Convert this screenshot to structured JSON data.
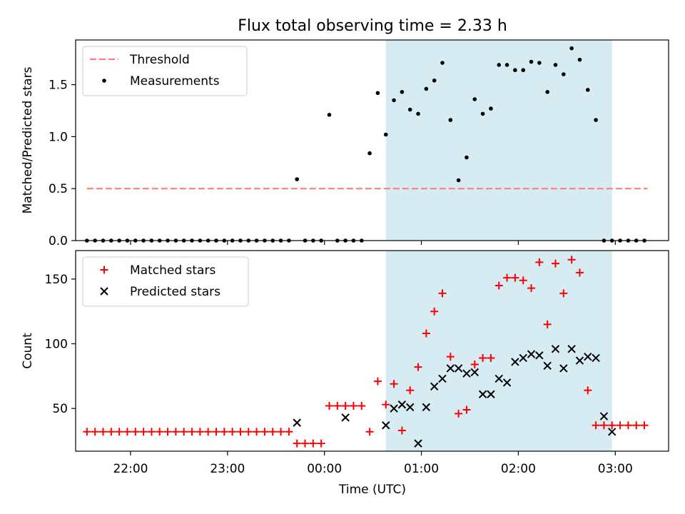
{
  "title": "Flux total observing time = 2.33 h",
  "xlabel": "Time (UTC)",
  "x_ticks": [
    "22:00",
    "23:00",
    "00:00",
    "01:00",
    "02:00",
    "03:00"
  ],
  "chart_data": [
    {
      "type": "scatter",
      "panel": "top",
      "ylabel": "Matched/Predicted stars",
      "y_ticks": [
        "0.0",
        "0.5",
        "1.0",
        "1.5"
      ],
      "ylim": [
        0,
        1.93
      ],
      "xlim": [
        "21:26",
        "03:33"
      ],
      "x_unit": "HH:MM UTC (date rolls over at 00:00)",
      "grid": false,
      "legend_position": "top-left",
      "shaded_interval": [
        "00:38",
        "02:58"
      ],
      "threshold": {
        "name": "Threshold",
        "value": 0.5,
        "x_range": [
          "21:33",
          "03:20"
        ],
        "color": "#ff7f7f"
      },
      "series": [
        {
          "name": "Measurements",
          "color": "#000000",
          "x": [
            "21:33",
            "21:38",
            "21:43",
            "21:48",
            "21:53",
            "21:58",
            "22:03",
            "22:08",
            "22:13",
            "22:18",
            "22:23",
            "22:28",
            "22:33",
            "22:38",
            "22:43",
            "22:48",
            "22:53",
            "22:58",
            "23:03",
            "23:08",
            "23:13",
            "23:18",
            "23:23",
            "23:28",
            "23:33",
            "23:38",
            "23:43",
            "23:48",
            "23:53",
            "23:58",
            "00:03",
            "00:08",
            "00:13",
            "00:18",
            "00:23",
            "00:28",
            "00:33",
            "00:38",
            "00:43",
            "00:48",
            "00:53",
            "00:58",
            "01:03",
            "01:08",
            "01:13",
            "01:18",
            "01:23",
            "01:28",
            "01:33",
            "01:38",
            "01:43",
            "01:48",
            "01:53",
            "01:58",
            "02:03",
            "02:08",
            "02:13",
            "02:18",
            "02:23",
            "02:28",
            "02:33",
            "02:38",
            "02:43",
            "02:48",
            "02:53",
            "02:58",
            "03:03",
            "03:08",
            "03:13",
            "03:18"
          ],
          "y": [
            0,
            0,
            0,
            0,
            0,
            0,
            0,
            0,
            0,
            0,
            0,
            0,
            0,
            0,
            0,
            0,
            0,
            0,
            0,
            0,
            0,
            0,
            0,
            0,
            0,
            0,
            0.59,
            0,
            0,
            0,
            1.21,
            0,
            0,
            0,
            0,
            0.84,
            1.42,
            1.02,
            1.35,
            1.43,
            1.26,
            1.22,
            1.46,
            1.54,
            1.71,
            1.16,
            0.58,
            0.8,
            1.36,
            1.22,
            1.27,
            1.69,
            1.69,
            1.64,
            1.64,
            1.72,
            1.71,
            1.43,
            1.69,
            1.6,
            1.85,
            1.74,
            1.45,
            1.16,
            0,
            0,
            0,
            0,
            0,
            0
          ]
        }
      ]
    },
    {
      "type": "scatter",
      "panel": "bottom",
      "ylabel": "Count",
      "y_ticks": [
        "50",
        "100",
        "150"
      ],
      "ylim": [
        17,
        172
      ],
      "xlim": [
        "21:26",
        "03:33"
      ],
      "x_unit": "HH:MM UTC (date rolls over at 00:00)",
      "grid": false,
      "legend_position": "top-left",
      "shaded_interval": [
        "00:38",
        "02:58"
      ],
      "series": [
        {
          "name": "Matched stars",
          "marker": "+",
          "color": "#ff0000",
          "x": [
            "21:33",
            "21:38",
            "21:43",
            "21:48",
            "21:53",
            "21:58",
            "22:03",
            "22:08",
            "22:13",
            "22:18",
            "22:23",
            "22:28",
            "22:33",
            "22:38",
            "22:43",
            "22:48",
            "22:53",
            "22:58",
            "23:03",
            "23:08",
            "23:13",
            "23:18",
            "23:23",
            "23:28",
            "23:33",
            "23:38",
            "23:43",
            "23:48",
            "23:53",
            "23:58",
            "00:03",
            "00:08",
            "00:13",
            "00:18",
            "00:23",
            "00:28",
            "00:33",
            "00:38",
            "00:43",
            "00:48",
            "00:53",
            "00:58",
            "01:03",
            "01:08",
            "01:13",
            "01:18",
            "01:23",
            "01:28",
            "01:33",
            "01:38",
            "01:43",
            "01:48",
            "01:53",
            "01:58",
            "02:03",
            "02:08",
            "02:13",
            "02:18",
            "02:23",
            "02:28",
            "02:33",
            "02:38",
            "02:43",
            "02:48",
            "02:53",
            "02:58",
            "03:03",
            "03:08",
            "03:13",
            "03:18"
          ],
          "y": [
            32,
            32,
            32,
            32,
            32,
            32,
            32,
            32,
            32,
            32,
            32,
            32,
            32,
            32,
            32,
            32,
            32,
            32,
            32,
            32,
            32,
            32,
            32,
            32,
            32,
            32,
            23,
            23,
            23,
            23,
            52,
            52,
            52,
            52,
            52,
            32,
            71,
            53,
            69,
            33,
            64,
            82,
            108,
            125,
            139,
            90,
            46,
            49,
            84,
            89,
            89,
            145,
            151,
            151,
            149,
            143,
            163,
            115,
            162,
            139,
            165,
            155,
            64,
            37,
            37,
            37,
            37,
            37,
            37,
            37
          ]
        },
        {
          "name": "Predicted stars",
          "marker": "x",
          "color": "#000000",
          "x": [
            "23:43",
            "00:13",
            "00:38",
            "00:43",
            "00:48",
            "00:53",
            "00:58",
            "01:03",
            "01:08",
            "01:13",
            "01:18",
            "01:23",
            "01:28",
            "01:33",
            "01:38",
            "01:43",
            "01:48",
            "01:53",
            "01:58",
            "02:03",
            "02:08",
            "02:13",
            "02:18",
            "02:23",
            "02:28",
            "02:33",
            "02:38",
            "02:43",
            "02:48",
            "02:53",
            "02:58"
          ],
          "y": [
            39,
            43,
            37,
            50,
            53,
            51,
            23,
            51,
            67,
            73,
            81,
            81,
            77,
            78,
            61,
            61,
            73,
            70,
            86,
            89,
            92,
            91,
            83,
            96,
            81,
            96,
            87,
            90,
            89,
            44,
            32
          ]
        }
      ]
    }
  ]
}
